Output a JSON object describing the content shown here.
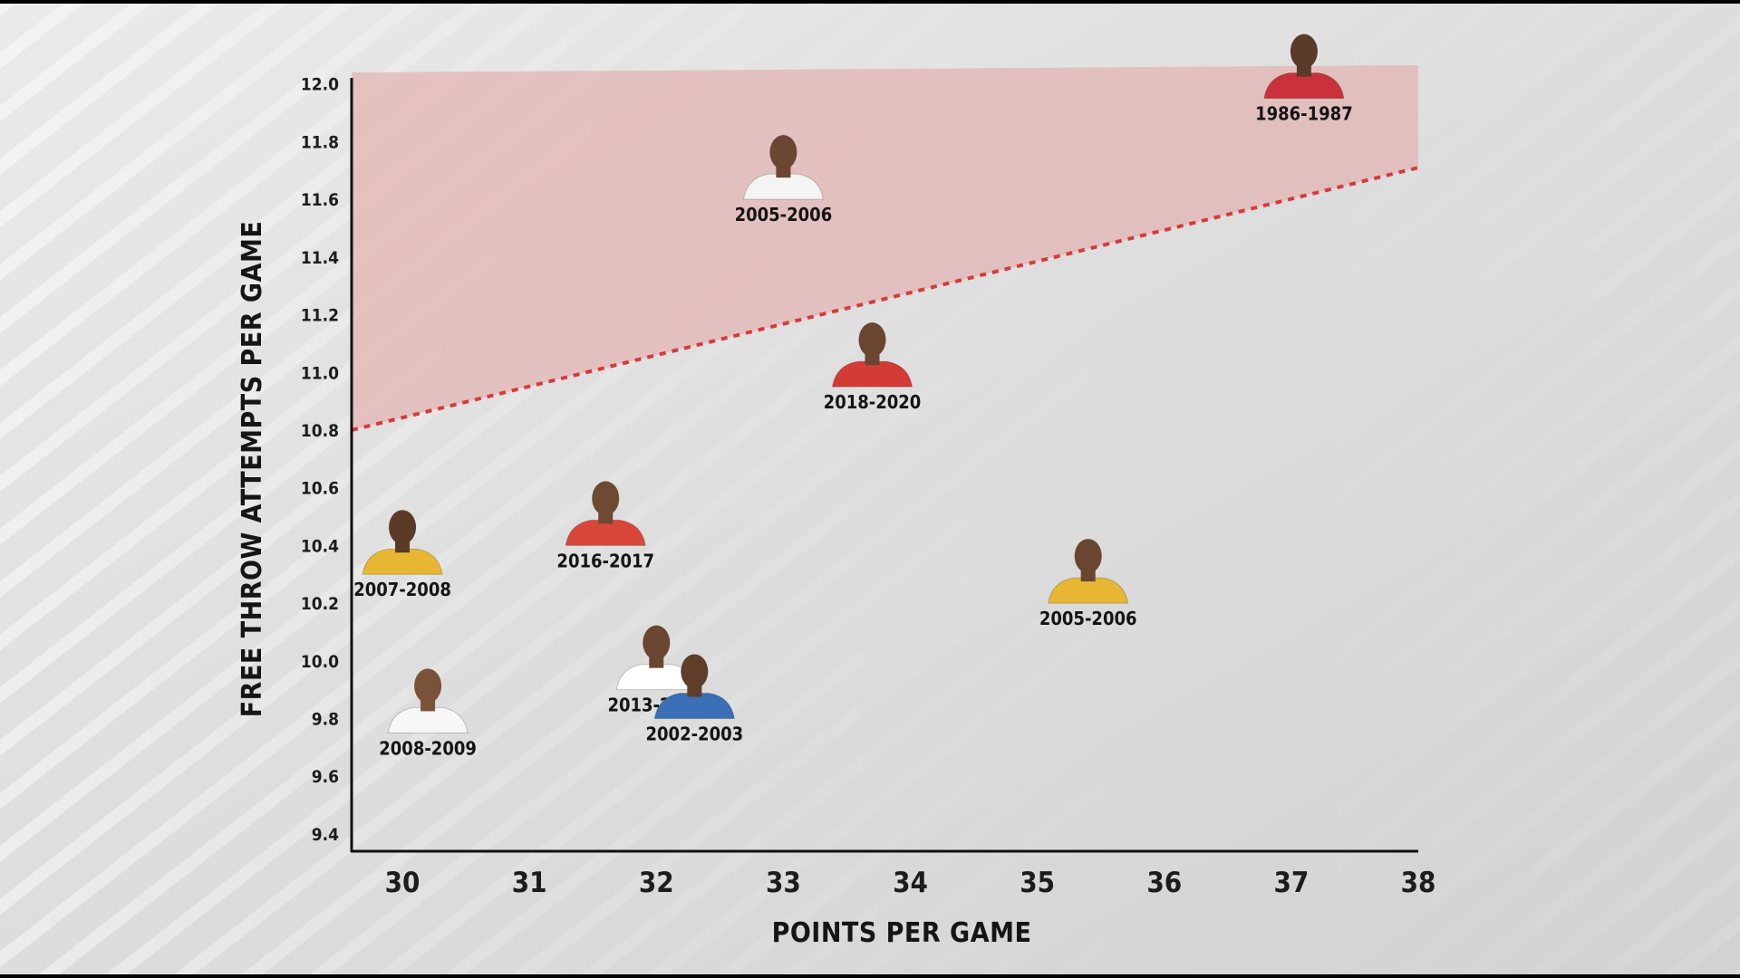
{
  "chart_data": {
    "type": "scatter",
    "title": "",
    "xlabel": "POINTS PER GAME",
    "ylabel": "FREE THROW ATTEMPTS PER GAME",
    "xlim": [
      29.6,
      38
    ],
    "ylim": [
      9.34,
      12.04
    ],
    "x_ticks": [
      "30",
      "31",
      "32",
      "33",
      "34",
      "35",
      "36",
      "37",
      "38"
    ],
    "y_ticks": [
      "12.0",
      "11.8",
      "11.6",
      "11.4",
      "11.2",
      "11.0",
      "10.8",
      "10.6",
      "10.4",
      "10.2",
      "10.0",
      "9.8",
      "9.6",
      "9.4"
    ],
    "grid": false,
    "threshold_line": {
      "style": "dashed",
      "color": "#d83a3a",
      "x": [
        29.6,
        38
      ],
      "y": [
        10.8,
        11.71
      ],
      "shaded_above": true,
      "shade_color": "#e3b3b3"
    },
    "points": [
      {
        "label": "1986-1987",
        "x": 37.1,
        "y": 11.95,
        "jersey": "#c9323b",
        "skin": "#5a3a28",
        "icon": "player-photo-icon"
      },
      {
        "label": "2005-2006",
        "x": 33.0,
        "y": 11.6,
        "jersey": "#f4f4f4",
        "skin": "#6b4630",
        "icon": "player-photo-icon"
      },
      {
        "label": "2018-2020",
        "x": 33.7,
        "y": 10.95,
        "jersey": "#d43a36",
        "skin": "#6a4530",
        "icon": "player-photo-icon"
      },
      {
        "label": "2016-2017",
        "x": 31.6,
        "y": 10.4,
        "jersey": "#d8473a",
        "skin": "#6e4a33",
        "icon": "player-photo-icon"
      },
      {
        "label": "2007-2008",
        "x": 30.0,
        "y": 10.3,
        "jersey": "#e7b733",
        "skin": "#5b3a27",
        "icon": "player-photo-icon"
      },
      {
        "label": "2005-2006",
        "x": 35.4,
        "y": 10.2,
        "jersey": "#e7b733",
        "skin": "#6a4530",
        "icon": "player-photo-icon"
      },
      {
        "label": "2013-2014",
        "x": 32.0,
        "y": 9.9,
        "jersey": "#ffffff",
        "skin": "#6a4530",
        "icon": "player-photo-icon"
      },
      {
        "label": "2002-2003",
        "x": 32.3,
        "y": 9.8,
        "jersey": "#3a6fb5",
        "skin": "#5e3d2a",
        "icon": "player-photo-icon"
      },
      {
        "label": "2008-2009",
        "x": 30.2,
        "y": 9.75,
        "jersey": "#f7f7f7",
        "skin": "#7a5238",
        "icon": "player-photo-icon"
      }
    ]
  }
}
